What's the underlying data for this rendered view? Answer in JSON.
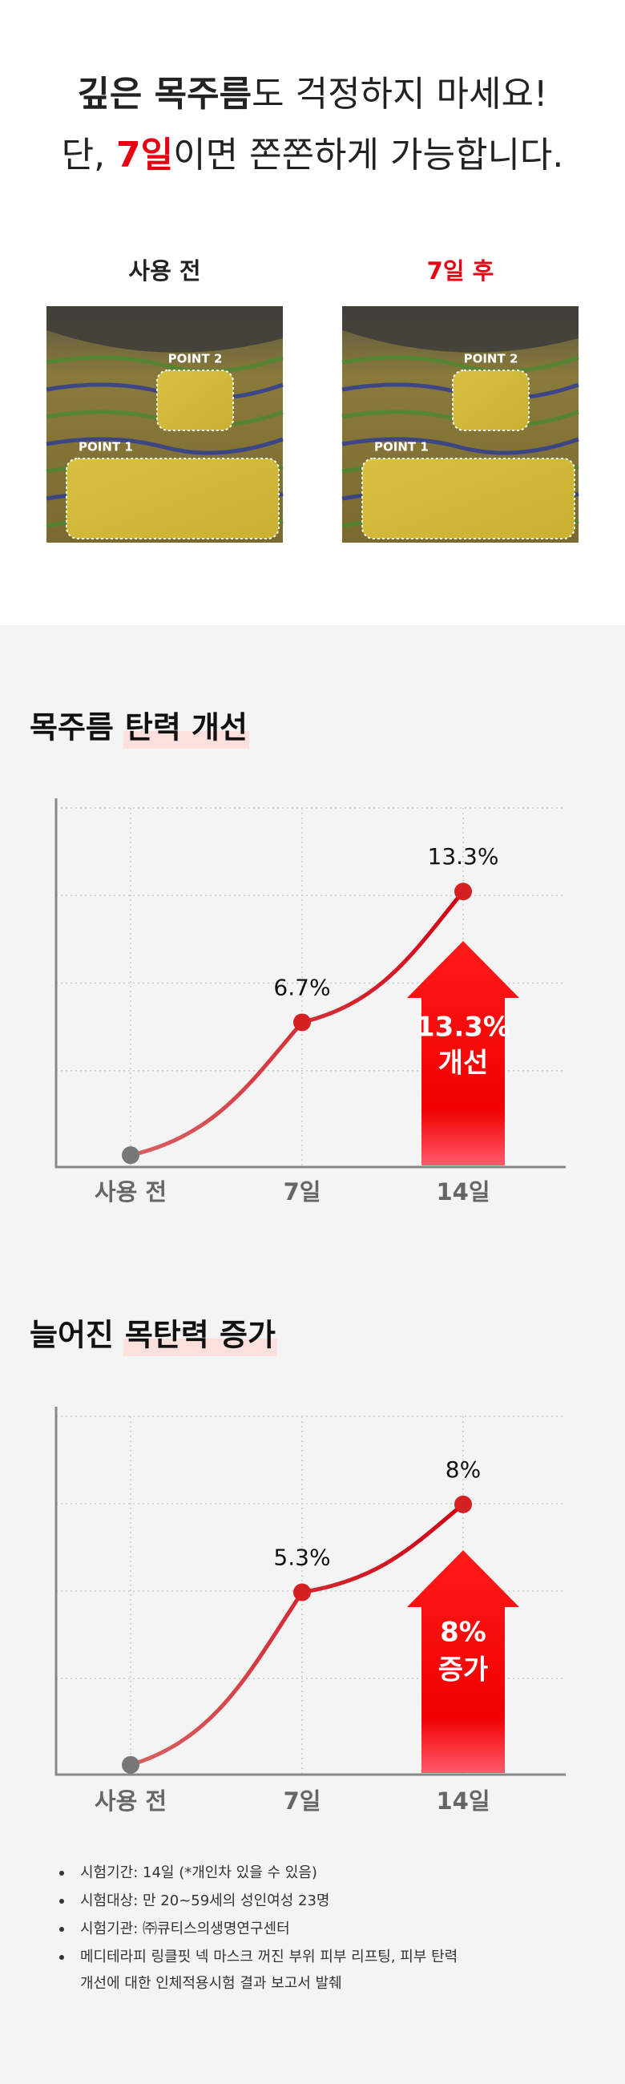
{
  "header": {
    "line1": [
      {
        "text": "깊은 목주름",
        "bold": true
      },
      {
        "text": "도 걱정하지 마세요!"
      }
    ],
    "line2": [
      {
        "text": "단, "
      },
      {
        "text": "7일",
        "bold": true,
        "color": "#e60012"
      },
      {
        "text": "이면 쫀쫀하게 가능합니다."
      }
    ]
  },
  "comparison": [
    {
      "label": "사용 전",
      "color": "#222222",
      "point2": "POINT 2",
      "point1": "POINT 1"
    },
    {
      "label": "7일 후",
      "color": "#e60012",
      "point2": "POINT 2",
      "point1": "POINT 1"
    }
  ],
  "chart_data": [
    {
      "type": "line",
      "title": [
        "목주름",
        "탄력 개선"
      ],
      "categories": [
        "사용 전",
        "7일",
        "14일"
      ],
      "values": [
        0,
        6.7,
        13.3
      ],
      "value_labels": [
        null,
        "6.7%",
        "13.3%"
      ],
      "color": "#d42020",
      "ylim": [
        -0.6,
        18
      ],
      "grid": true,
      "annotation": [
        "13.3%",
        "개선"
      ]
    },
    {
      "type": "line",
      "title": [
        "늘어진",
        "목탄력 증가"
      ],
      "categories": [
        "사용 전",
        "7일",
        "14일"
      ],
      "values": [
        0,
        5.3,
        8
      ],
      "value_labels": [
        null,
        "5.3%",
        "8%"
      ],
      "color": "#d42020",
      "ylim": [
        -0.3,
        11
      ],
      "grid": true,
      "annotation": [
        "8%",
        "증가"
      ]
    }
  ],
  "notes": [
    [
      "시험기간: 14일 (*개인차 있을 수 있음)"
    ],
    [
      "시험대상: 만 20~59세의 성인여성 23명"
    ],
    [
      "시험기관: ㈜큐티스의생명연구센터"
    ],
    [
      "메디테라피 링클핏 넥 마스크 꺼진 부위 피부 리프팅, 피부 탄력",
      "개선에 대한 인체적용시험 결과 보고서 발췌"
    ]
  ]
}
